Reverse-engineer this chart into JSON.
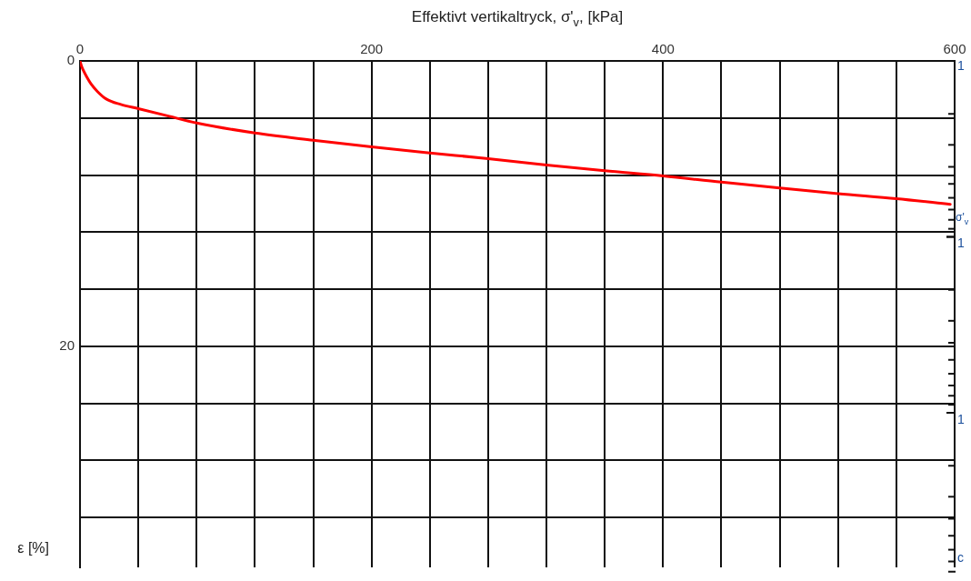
{
  "chart_data": {
    "type": "line",
    "xlabel": "Effektivt vertikaltryck, σ'$_{v}$, [kPa]",
    "ylabel": "ε [%]",
    "xlim": [
      0,
      600
    ],
    "xticks": [
      0,
      {
        "value": 40,
        "label": null
      },
      {
        "value": 80,
        "label": null
      },
      {
        "value": 120,
        "label": null
      },
      {
        "value": 160,
        "label": null
      },
      200,
      {
        "value": 240,
        "label": null
      },
      {
        "value": 280,
        "label": null
      },
      {
        "value": 320,
        "label": null
      },
      {
        "value": 360,
        "label": null
      },
      400,
      {
        "value": 440,
        "label": null
      },
      {
        "value": 480,
        "label": null
      },
      {
        "value": 520,
        "label": null
      },
      {
        "value": 560,
        "label": null
      },
      600
    ],
    "ylim": [
      35.5,
      0
    ],
    "yticks": [
      0,
      {
        "value": 4,
        "label": null
      },
      {
        "value": 8,
        "label": null
      },
      {
        "value": 12,
        "label": null
      },
      {
        "value": 16,
        "label": null
      },
      20,
      {
        "value": 24,
        "label": null
      },
      {
        "value": 28,
        "label": null
      },
      {
        "value": 32,
        "label": null
      }
    ],
    "grid": true,
    "legend": false,
    "marker": "none",
    "line_style": "solid",
    "series": [
      {
        "color": "#ff0000",
        "x": [
          0,
          1,
          2,
          4,
          7.5,
          12,
          18,
          28,
          40,
          60,
          80,
          120,
          160,
          200,
          240,
          280,
          320,
          360,
          400,
          440,
          480,
          520,
          560,
          597
        ],
        "values": [
          0,
          0.35,
          0.6,
          1.0,
          1.6,
          2.15,
          2.67,
          3.05,
          3.35,
          3.85,
          4.35,
          5.05,
          5.56,
          6.03,
          6.45,
          6.85,
          7.3,
          7.7,
          8.06,
          8.5,
          8.9,
          9.3,
          9.65,
          10.05
        ]
      }
    ],
    "annotations": [
      "1",
      "σ'$_{v}$",
      "1",
      "1",
      "c"
    ]
  }
}
